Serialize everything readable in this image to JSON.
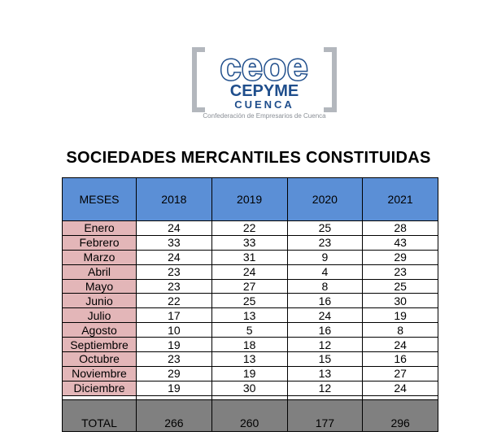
{
  "logo": {
    "main": "ceoe",
    "sub": "CEPYME",
    "city": "CUENCA",
    "tagline": "Confederación de Empresarios de Cuenca"
  },
  "title": "SOCIEDADES MERCANTILES CONSTITUIDAS",
  "table": {
    "headers": [
      "MESES",
      "2018",
      "2019",
      "2020",
      "2021"
    ],
    "rows": [
      {
        "month": "Enero",
        "values": [
          "24",
          "22",
          "25",
          "28"
        ]
      },
      {
        "month": "Febrero",
        "values": [
          "33",
          "33",
          "23",
          "43"
        ]
      },
      {
        "month": "Marzo",
        "values": [
          "24",
          "31",
          "9",
          "29"
        ]
      },
      {
        "month": "Abril",
        "values": [
          "23",
          "24",
          "4",
          "23"
        ]
      },
      {
        "month": "Mayo",
        "values": [
          "23",
          "27",
          "8",
          "25"
        ]
      },
      {
        "month": "Junio",
        "values": [
          "22",
          "25",
          "16",
          "30"
        ]
      },
      {
        "month": "Julio",
        "values": [
          "17",
          "13",
          "24",
          "19"
        ]
      },
      {
        "month": "Agosto",
        "values": [
          "10",
          "5",
          "16",
          "8"
        ]
      },
      {
        "month": "Septiembre",
        "values": [
          "19",
          "18",
          "12",
          "24"
        ]
      },
      {
        "month": "Octubre",
        "values": [
          "23",
          "13",
          "15",
          "16"
        ]
      },
      {
        "month": "Noviembre",
        "values": [
          "29",
          "19",
          "13",
          "27"
        ]
      },
      {
        "month": "Diciembre",
        "values": [
          "19",
          "30",
          "12",
          "24"
        ]
      }
    ],
    "total": {
      "label": "TOTAL",
      "values": [
        "266",
        "260",
        "177",
        "296"
      ]
    }
  },
  "colors": {
    "header_bg": "#5b8fd6",
    "month_bg": "#e3b6b8",
    "total_bg": "#808080",
    "logo_blue": "#1f4e8c",
    "logo_gray": "#b3b7bd"
  }
}
